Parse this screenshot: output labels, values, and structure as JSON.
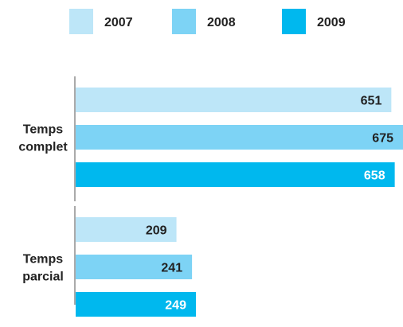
{
  "chart_data": {
    "type": "bar",
    "orientation": "horizontal",
    "categories": [
      [
        "Temps",
        "complet"
      ],
      [
        "Temps",
        "parcial"
      ]
    ],
    "series": [
      {
        "name": "2007",
        "color": "#bde6f8",
        "values": [
          651,
          209
        ],
        "label_color": "#222222"
      },
      {
        "name": "2008",
        "color": "#7dd3f5",
        "values": [
          675,
          241
        ],
        "label_color": "#222222"
      },
      {
        "name": "2009",
        "color": "#00b8ee",
        "values": [
          658,
          249
        ],
        "label_color": "#ffffff"
      }
    ],
    "xlim": [
      0,
      675
    ],
    "legend": "top",
    "grid": false
  }
}
